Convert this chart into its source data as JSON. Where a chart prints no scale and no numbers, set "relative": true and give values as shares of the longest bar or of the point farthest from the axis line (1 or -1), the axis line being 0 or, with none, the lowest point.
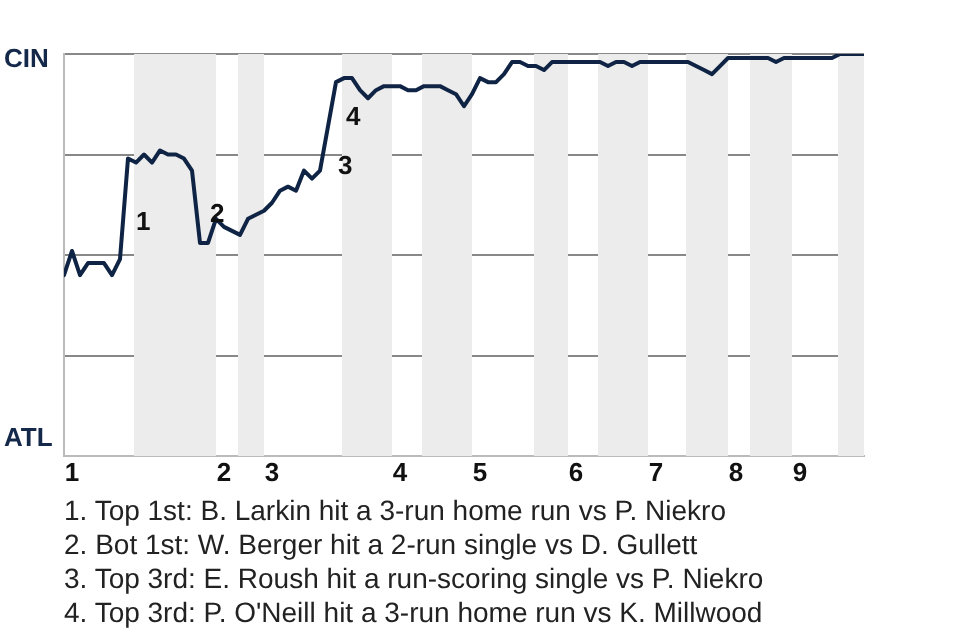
{
  "chart_data": {
    "type": "line",
    "relative": true,
    "categories": [
      null,
      "1",
      null,
      null,
      null,
      null,
      null,
      null,
      null,
      null,
      null,
      null,
      null,
      null,
      null,
      null,
      null,
      null,
      null,
      null,
      "2",
      null,
      null,
      null,
      null,
      null,
      "3",
      null,
      null,
      null,
      null,
      null,
      null,
      null,
      null,
      null,
      null,
      null,
      null,
      null,
      null,
      null,
      "4",
      null,
      null,
      null,
      null,
      null,
      null,
      null,
      null,
      null,
      "5",
      null,
      null,
      null,
      null,
      null,
      null,
      null,
      null,
      null,
      null,
      null,
      "6",
      null,
      null,
      null,
      null,
      null,
      null,
      null,
      null,
      null,
      "7",
      null,
      null,
      null,
      null,
      null,
      null,
      null,
      null,
      null,
      "8",
      null,
      null,
      null,
      null,
      null,
      null,
      null,
      "9",
      null,
      null,
      null,
      null,
      null,
      null,
      null,
      null
    ],
    "series": [
      {
        "color": "#0f2444",
        "values": [
          0.45,
          0.51,
          0.45,
          0.48,
          0.48,
          0.48,
          0.45,
          0.49,
          0.74,
          0.73,
          0.75,
          0.73,
          0.76,
          0.75,
          0.75,
          0.74,
          0.71,
          0.53,
          0.53,
          0.59,
          0.57,
          0.56,
          0.55,
          0.59,
          0.6,
          0.61,
          0.63,
          0.66,
          0.67,
          0.66,
          0.71,
          0.69,
          0.71,
          0.82,
          0.93,
          0.94,
          0.94,
          0.91,
          0.89,
          0.91,
          0.92,
          0.92,
          0.92,
          0.91,
          0.91,
          0.92,
          0.92,
          0.92,
          0.91,
          0.9,
          0.87,
          0.9,
          0.94,
          0.93,
          0.93,
          0.95,
          0.98,
          0.98,
          0.97,
          0.97,
          0.96,
          0.98,
          0.98,
          0.98,
          0.98,
          0.98,
          0.98,
          0.98,
          0.97,
          0.98,
          0.98,
          0.97,
          0.98,
          0.98,
          0.98,
          0.98,
          0.98,
          0.98,
          0.98,
          0.97,
          0.96,
          0.95,
          0.97,
          0.99,
          0.99,
          0.99,
          0.99,
          0.99,
          0.99,
          0.98,
          0.99,
          0.99,
          0.99,
          0.99,
          0.99,
          0.99,
          0.99,
          1,
          1,
          1,
          1
        ]
      }
    ],
    "grid": "y",
    "legend": false,
    "marker": "none",
    "line_style": "solid",
    "annotations": [
      "CIN",
      "ATL",
      "1",
      "2",
      "3",
      "4",
      "1. Top 1st: B. Larkin hit a 3-run home run vs P. Niekro",
      "2. Bot 1st: W. Berger hit a 2-run single vs D. Gullett",
      "3. Top 3rd: E. Roush hit a run-scoring single vs P. Niekro",
      "4. Top 3rd: P. O'Neill hit a 3-run home run vs K. Millwood"
    ]
  }
}
